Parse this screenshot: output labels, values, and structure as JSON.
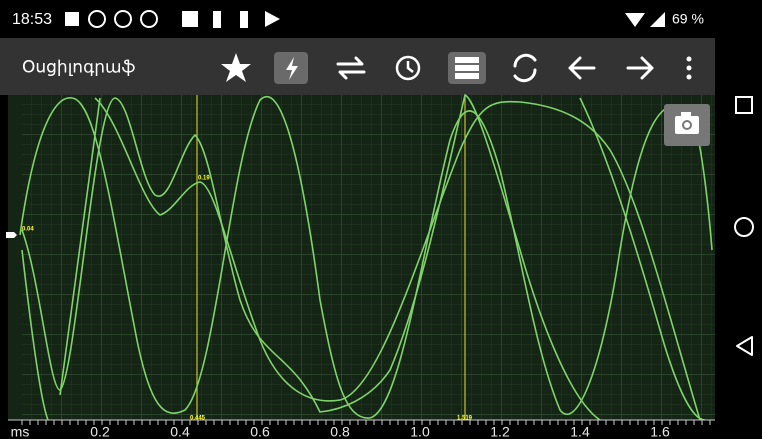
{
  "status_bar": {
    "time": "18:53",
    "battery": "69 %"
  },
  "toolbar": {
    "title": "Օսցիլոգրաֆ"
  },
  "plot": {
    "x_axis_labels": [
      "ms",
      "0.2",
      "0.4",
      "0.6",
      "0.8",
      "1.0",
      "1.2",
      "1.4",
      "1.6"
    ],
    "cursor_labels": [
      "0.19",
      "0.445",
      "1.519",
      "0.04"
    ]
  }
}
